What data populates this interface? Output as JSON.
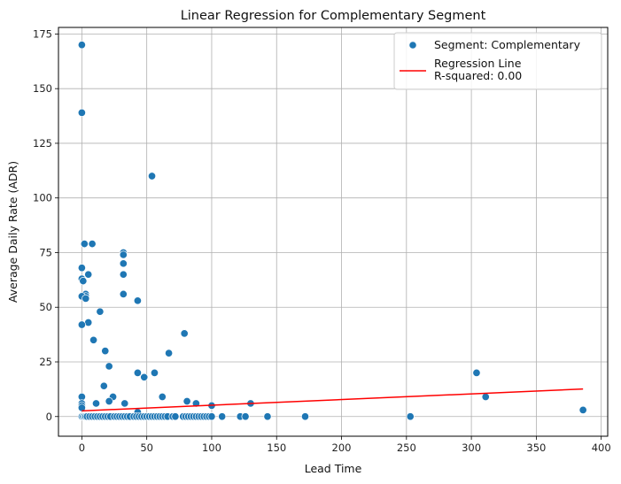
{
  "chart_data": {
    "type": "scatter",
    "title": "Linear Regression for Complementary Segment",
    "xlabel": "Lead Time",
    "ylabel": "Average Daily Rate (ADR)",
    "xlim": [
      -18,
      405
    ],
    "ylim": [
      -9,
      178
    ],
    "xticks": [
      0,
      50,
      100,
      150,
      200,
      250,
      300,
      350,
      400
    ],
    "yticks": [
      0,
      25,
      50,
      75,
      100,
      125,
      150,
      175
    ],
    "grid": true,
    "legend_position": "top-right",
    "series": [
      {
        "name": "Segment: Complementary",
        "type": "scatter",
        "color": "#1f77b4",
        "points": [
          [
            0,
            170
          ],
          [
            0,
            139
          ],
          [
            54,
            110
          ],
          [
            2,
            79
          ],
          [
            8,
            79
          ],
          [
            32,
            75
          ],
          [
            32,
            74
          ],
          [
            32,
            70
          ],
          [
            0,
            68
          ],
          [
            32,
            65
          ],
          [
            5,
            65
          ],
          [
            0,
            63
          ],
          [
            1,
            62
          ],
          [
            32,
            56
          ],
          [
            3,
            56
          ],
          [
            3,
            55
          ],
          [
            0,
            55
          ],
          [
            3,
            54
          ],
          [
            43,
            53
          ],
          [
            14,
            48
          ],
          [
            5,
            43
          ],
          [
            0,
            42
          ],
          [
            79,
            38
          ],
          [
            9,
            35
          ],
          [
            18,
            30
          ],
          [
            67,
            29
          ],
          [
            21,
            23
          ],
          [
            43,
            20
          ],
          [
            56,
            20
          ],
          [
            304,
            20
          ],
          [
            48,
            18
          ],
          [
            17,
            14
          ],
          [
            24,
            9
          ],
          [
            62,
            9
          ],
          [
            311,
            9
          ],
          [
            0,
            9
          ],
          [
            21,
            7
          ],
          [
            81,
            7
          ],
          [
            11,
            6
          ],
          [
            33,
            6
          ],
          [
            88,
            6
          ],
          [
            130,
            6
          ],
          [
            0,
            6
          ],
          [
            0,
            5
          ],
          [
            0,
            4
          ],
          [
            100,
            5
          ],
          [
            386,
            3
          ],
          [
            43,
            2
          ],
          [
            0,
            0
          ],
          [
            1,
            0
          ],
          [
            2,
            0
          ],
          [
            3,
            0
          ],
          [
            4,
            0
          ],
          [
            6,
            0
          ],
          [
            8,
            0
          ],
          [
            10,
            0
          ],
          [
            12,
            0
          ],
          [
            14,
            0
          ],
          [
            16,
            0
          ],
          [
            18,
            0
          ],
          [
            20,
            0
          ],
          [
            22,
            0
          ],
          [
            25,
            0
          ],
          [
            27,
            0
          ],
          [
            29,
            0
          ],
          [
            31,
            0
          ],
          [
            33,
            0
          ],
          [
            35,
            0
          ],
          [
            37,
            0
          ],
          [
            40,
            0
          ],
          [
            42,
            0
          ],
          [
            44,
            0
          ],
          [
            46,
            0
          ],
          [
            48,
            0
          ],
          [
            50,
            0
          ],
          [
            52,
            0
          ],
          [
            54,
            0
          ],
          [
            56,
            0
          ],
          [
            58,
            0
          ],
          [
            60,
            0
          ],
          [
            62,
            0
          ],
          [
            64,
            0
          ],
          [
            66,
            0
          ],
          [
            70,
            0
          ],
          [
            72,
            0
          ],
          [
            78,
            0
          ],
          [
            80,
            0
          ],
          [
            82,
            0
          ],
          [
            84,
            0
          ],
          [
            86,
            0
          ],
          [
            88,
            0
          ],
          [
            90,
            0
          ],
          [
            92,
            0
          ],
          [
            94,
            0
          ],
          [
            96,
            0
          ],
          [
            98,
            0
          ],
          [
            100,
            0
          ],
          [
            108,
            0
          ],
          [
            122,
            0
          ],
          [
            126,
            0
          ],
          [
            143,
            0
          ],
          [
            172,
            0
          ],
          [
            253,
            0
          ]
        ]
      },
      {
        "name": "Regression Line\nR-squared: 0.00",
        "type": "line",
        "color": "#ff0000",
        "x": [
          0,
          386
        ],
        "y": [
          2.6,
          12.6
        ]
      }
    ]
  }
}
